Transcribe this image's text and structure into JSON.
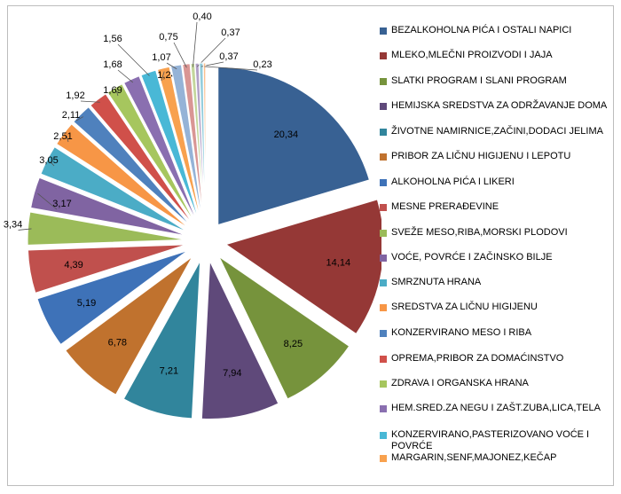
{
  "chart_data": {
    "type": "pie",
    "title": "",
    "legend_position": "right",
    "slices": [
      {
        "label": "BEZALKOHOLNA PIĆA I OSTALI NAPICI",
        "value": 20.34,
        "value_label": "20,34",
        "color": "#386193"
      },
      {
        "label": "MLEKO,MLEČNI PROIZVODI I JAJA",
        "value": 14.14,
        "value_label": "14,14",
        "color": "#953836"
      },
      {
        "label": "SLATKI PROGRAM I SLANI PROGRAM",
        "value": 8.25,
        "value_label": "8,25",
        "color": "#76933c"
      },
      {
        "label": "HEMIJSKA SREDSTVA ZA ODRŽAVANJE DOMA",
        "value": 7.94,
        "value_label": "7,94",
        "color": "#5f497a"
      },
      {
        "label": "ŽIVOTNE NAMIRNICE,ZAČINI,DODACI JELIMA",
        "value": 7.21,
        "value_label": "7,21",
        "color": "#31859c"
      },
      {
        "label": "PRIBOR ZA LIČNU HIGIJENU I LEPOTU",
        "value": 6.78,
        "value_label": "6,78",
        "color": "#c0722e"
      },
      {
        "label": "ALKOHOLNA PIĆA I LIKERI",
        "value": 5.19,
        "value_label": "5,19",
        "color": "#3e72b8"
      },
      {
        "label": "MESNE PRERAĐEVINE",
        "value": 4.39,
        "value_label": "4,39",
        "color": "#c0504d"
      },
      {
        "label": "SVEŽE MESO,RIBA,MORSKI PLODOVI",
        "value": 3.34,
        "value_label": "3,34",
        "color": "#9bbb59"
      },
      {
        "label": "VOĆE, POVRĆE I ZAČINSKO BILJE",
        "value": 3.17,
        "value_label": "3,17",
        "color": "#8064a2"
      },
      {
        "label": "SMRZNUTA HRANA",
        "value": 3.05,
        "value_label": "3,05",
        "color": "#4bacc6"
      },
      {
        "label": "SREDSTVA ZA LIČNU HIGIJENU",
        "value": 2.51,
        "value_label": "2,51",
        "color": "#f79646"
      },
      {
        "label": "KONZERVIRANO MESO I RIBA",
        "value": 2.11,
        "value_label": "2,11",
        "color": "#4f81bd"
      },
      {
        "label": "OPREMA,PRIBOR ZA DOMAĆINSTVO",
        "value": 1.92,
        "value_label": "1,92",
        "color": "#d0504a"
      },
      {
        "label": "ZDRAVA I ORGANSKA HRANA",
        "value": 1.69,
        "value_label": "1,69",
        "color": "#a6c65e"
      },
      {
        "label": "HEM.SRED.ZA NEGU I ZAŠT.ZUBA,LICA,TELA",
        "value": 1.68,
        "value_label": "1,68",
        "color": "#8a6fb0"
      },
      {
        "label": "KONZERVIRANO,PASTERIZOVANO VOĆE I POVRĆE",
        "value": 1.56,
        "value_label": "1,56",
        "color": "#49b8d6"
      },
      {
        "label": "MARGARIN,SENF,MAJONEZ,KEČAP",
        "value": 1.24,
        "value_label": "1,24",
        "color": "#f8a14e"
      },
      {
        "label": "",
        "value": 1.07,
        "value_label": "1,07",
        "color": "#95b3d7"
      },
      {
        "label": "",
        "value": 0.75,
        "value_label": "0,75",
        "color": "#d99694"
      },
      {
        "label": "",
        "value": 0.4,
        "value_label": "0,40",
        "color": "#c3d69b"
      },
      {
        "label": "",
        "value": 0.37,
        "value_label": "0,37",
        "color": "#b2a1c7"
      },
      {
        "label": "",
        "value": 0.37,
        "value_label": "0,37",
        "color": "#93cddd"
      },
      {
        "label": "",
        "value": 0.23,
        "value_label": "0,23",
        "color": "#fac090"
      }
    ]
  }
}
